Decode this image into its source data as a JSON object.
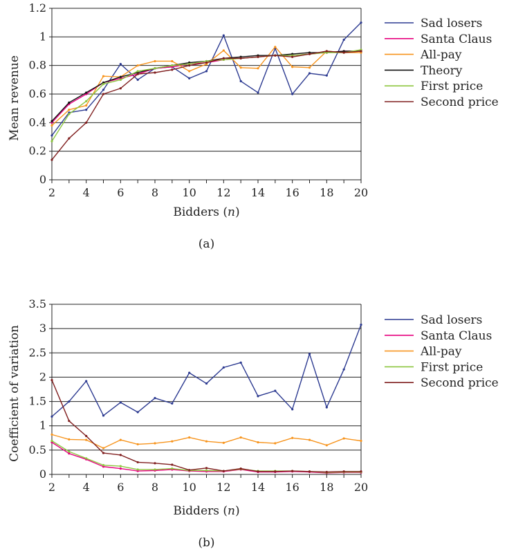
{
  "chart_data": [
    {
      "type": "line",
      "panel_label": "(a)",
      "xlabel": "Bidders",
      "xlabel_var": "n",
      "ylabel": "Mean revenue",
      "xlim": [
        2,
        20
      ],
      "ylim": [
        0,
        1.2
      ],
      "y_ticks": [
        "0",
        "0.2",
        "0.4",
        "0.6",
        "0.8",
        "1",
        "1.2"
      ],
      "x_ticks": [
        "2",
        "4",
        "6",
        "8",
        "10",
        "12",
        "14",
        "16",
        "18",
        "20"
      ],
      "grid": "horizontal",
      "legend": "right",
      "x": [
        2,
        3,
        4,
        5,
        6,
        7,
        8,
        9,
        10,
        11,
        12,
        13,
        14,
        15,
        16,
        17,
        18,
        19,
        20
      ],
      "series": [
        {
          "name": "Sad losers",
          "color": "#2b3990",
          "values": [
            0.31,
            0.47,
            0.49,
            0.63,
            0.81,
            0.7,
            0.78,
            0.79,
            0.71,
            0.76,
            1.01,
            0.69,
            0.61,
            0.92,
            0.6,
            0.745,
            0.73,
            0.98,
            1.1
          ]
        },
        {
          "name": "Santa Claus",
          "color": "#e6007e",
          "values": [
            0.4,
            0.53,
            0.6,
            0.68,
            0.71,
            0.74,
            0.78,
            0.79,
            0.81,
            0.82,
            0.84,
            0.85,
            0.86,
            0.87,
            0.87,
            0.88,
            0.89,
            0.9,
            0.9
          ]
        },
        {
          "name": "All-pay",
          "color": "#f7941d",
          "values": [
            0.38,
            0.49,
            0.52,
            0.725,
            0.72,
            0.8,
            0.83,
            0.83,
            0.76,
            0.81,
            0.905,
            0.785,
            0.78,
            0.93,
            0.79,
            0.785,
            0.9,
            0.89,
            0.89
          ]
        },
        {
          "name": "Theory",
          "color": "#111111",
          "values": [
            0.41,
            0.54,
            0.61,
            0.68,
            0.72,
            0.75,
            0.78,
            0.8,
            0.82,
            0.83,
            0.85,
            0.86,
            0.87,
            0.87,
            0.88,
            0.89,
            0.89,
            0.9,
            0.9
          ]
        },
        {
          "name": "First price",
          "color": "#8dc63f",
          "values": [
            0.27,
            0.46,
            0.55,
            0.67,
            0.7,
            0.76,
            0.78,
            0.8,
            0.81,
            0.83,
            0.84,
            0.85,
            0.86,
            0.87,
            0.87,
            0.88,
            0.89,
            0.89,
            0.91
          ]
        },
        {
          "name": "Second price",
          "color": "#7f1d1d",
          "values": [
            0.14,
            0.29,
            0.4,
            0.6,
            0.64,
            0.74,
            0.75,
            0.77,
            0.8,
            0.82,
            0.85,
            0.85,
            0.86,
            0.87,
            0.86,
            0.88,
            0.9,
            0.89,
            0.9
          ]
        }
      ]
    },
    {
      "type": "line",
      "panel_label": "(b)",
      "xlabel": "Bidders",
      "xlabel_var": "n",
      "ylabel": "Coefficient of variation",
      "xlim": [
        2,
        20
      ],
      "ylim": [
        0,
        3.5
      ],
      "y_ticks": [
        "0",
        "0.5",
        "1",
        "1.5",
        "2",
        "2.5",
        "3",
        "3.5"
      ],
      "x_ticks": [
        "2",
        "4",
        "6",
        "8",
        "10",
        "12",
        "14",
        "16",
        "18",
        "20"
      ],
      "grid": "horizontal",
      "legend": "right",
      "x": [
        2,
        3,
        4,
        5,
        6,
        7,
        8,
        9,
        10,
        11,
        12,
        13,
        14,
        15,
        16,
        17,
        18,
        19,
        20
      ],
      "series": [
        {
          "name": "Sad losers",
          "color": "#2b3990",
          "values": [
            1.19,
            1.5,
            1.92,
            1.21,
            1.48,
            1.28,
            1.57,
            1.46,
            2.09,
            1.87,
            2.2,
            2.3,
            1.61,
            1.72,
            1.34,
            2.48,
            1.38,
            2.16,
            3.08
          ]
        },
        {
          "name": "Santa Claus",
          "color": "#e6007e",
          "values": [
            0.66,
            0.43,
            0.31,
            0.16,
            0.12,
            0.07,
            0.08,
            0.1,
            0.07,
            0.06,
            0.06,
            0.1,
            0.05,
            0.05,
            0.06,
            0.05,
            0.03,
            0.04,
            0.04
          ]
        },
        {
          "name": "All-pay",
          "color": "#f7941d",
          "values": [
            0.82,
            0.72,
            0.71,
            0.54,
            0.71,
            0.62,
            0.64,
            0.68,
            0.76,
            0.68,
            0.65,
            0.76,
            0.66,
            0.64,
            0.75,
            0.71,
            0.6,
            0.74,
            0.69
          ]
        },
        {
          "name": "First price",
          "color": "#8dc63f",
          "values": [
            0.69,
            0.47,
            0.33,
            0.19,
            0.17,
            0.1,
            0.1,
            0.12,
            0.08,
            0.08,
            0.07,
            0.11,
            0.07,
            0.07,
            0.07,
            0.06,
            0.04,
            0.05,
            0.05
          ]
        },
        {
          "name": "Second price",
          "color": "#7f1d1d",
          "values": [
            1.94,
            1.1,
            0.79,
            0.44,
            0.4,
            0.25,
            0.23,
            0.2,
            0.09,
            0.13,
            0.07,
            0.12,
            0.06,
            0.06,
            0.07,
            0.06,
            0.05,
            0.06,
            0.06
          ]
        }
      ]
    }
  ]
}
